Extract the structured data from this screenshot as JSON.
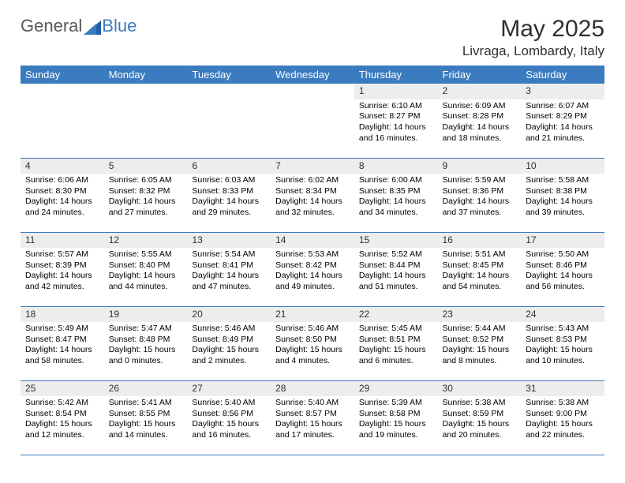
{
  "logo": {
    "text1": "General",
    "text2": "Blue"
  },
  "title": {
    "month": "May 2025",
    "location": "Livraga, Lombardy, Italy"
  },
  "style": {
    "header_bg": "#3b7bbf",
    "header_fg": "#ffffff",
    "daynum_bg": "#ededed",
    "border_color": "#3b7bbf",
    "text_color": "#000000",
    "font_family": "Arial",
    "th_fontsize": 13,
    "cell_fontsize": 10.5,
    "month_fontsize": 30,
    "location_fontsize": 17
  },
  "days_of_week": [
    "Sunday",
    "Monday",
    "Tuesday",
    "Wednesday",
    "Thursday",
    "Friday",
    "Saturday"
  ],
  "weeks": [
    [
      null,
      null,
      null,
      null,
      {
        "n": "1",
        "sunrise": "Sunrise: 6:10 AM",
        "sunset": "Sunset: 8:27 PM",
        "daylight": "Daylight: 14 hours and 16 minutes."
      },
      {
        "n": "2",
        "sunrise": "Sunrise: 6:09 AM",
        "sunset": "Sunset: 8:28 PM",
        "daylight": "Daylight: 14 hours and 18 minutes."
      },
      {
        "n": "3",
        "sunrise": "Sunrise: 6:07 AM",
        "sunset": "Sunset: 8:29 PM",
        "daylight": "Daylight: 14 hours and 21 minutes."
      }
    ],
    [
      {
        "n": "4",
        "sunrise": "Sunrise: 6:06 AM",
        "sunset": "Sunset: 8:30 PM",
        "daylight": "Daylight: 14 hours and 24 minutes."
      },
      {
        "n": "5",
        "sunrise": "Sunrise: 6:05 AM",
        "sunset": "Sunset: 8:32 PM",
        "daylight": "Daylight: 14 hours and 27 minutes."
      },
      {
        "n": "6",
        "sunrise": "Sunrise: 6:03 AM",
        "sunset": "Sunset: 8:33 PM",
        "daylight": "Daylight: 14 hours and 29 minutes."
      },
      {
        "n": "7",
        "sunrise": "Sunrise: 6:02 AM",
        "sunset": "Sunset: 8:34 PM",
        "daylight": "Daylight: 14 hours and 32 minutes."
      },
      {
        "n": "8",
        "sunrise": "Sunrise: 6:00 AM",
        "sunset": "Sunset: 8:35 PM",
        "daylight": "Daylight: 14 hours and 34 minutes."
      },
      {
        "n": "9",
        "sunrise": "Sunrise: 5:59 AM",
        "sunset": "Sunset: 8:36 PM",
        "daylight": "Daylight: 14 hours and 37 minutes."
      },
      {
        "n": "10",
        "sunrise": "Sunrise: 5:58 AM",
        "sunset": "Sunset: 8:38 PM",
        "daylight": "Daylight: 14 hours and 39 minutes."
      }
    ],
    [
      {
        "n": "11",
        "sunrise": "Sunrise: 5:57 AM",
        "sunset": "Sunset: 8:39 PM",
        "daylight": "Daylight: 14 hours and 42 minutes."
      },
      {
        "n": "12",
        "sunrise": "Sunrise: 5:55 AM",
        "sunset": "Sunset: 8:40 PM",
        "daylight": "Daylight: 14 hours and 44 minutes."
      },
      {
        "n": "13",
        "sunrise": "Sunrise: 5:54 AM",
        "sunset": "Sunset: 8:41 PM",
        "daylight": "Daylight: 14 hours and 47 minutes."
      },
      {
        "n": "14",
        "sunrise": "Sunrise: 5:53 AM",
        "sunset": "Sunset: 8:42 PM",
        "daylight": "Daylight: 14 hours and 49 minutes."
      },
      {
        "n": "15",
        "sunrise": "Sunrise: 5:52 AM",
        "sunset": "Sunset: 8:44 PM",
        "daylight": "Daylight: 14 hours and 51 minutes."
      },
      {
        "n": "16",
        "sunrise": "Sunrise: 5:51 AM",
        "sunset": "Sunset: 8:45 PM",
        "daylight": "Daylight: 14 hours and 54 minutes."
      },
      {
        "n": "17",
        "sunrise": "Sunrise: 5:50 AM",
        "sunset": "Sunset: 8:46 PM",
        "daylight": "Daylight: 14 hours and 56 minutes."
      }
    ],
    [
      {
        "n": "18",
        "sunrise": "Sunrise: 5:49 AM",
        "sunset": "Sunset: 8:47 PM",
        "daylight": "Daylight: 14 hours and 58 minutes."
      },
      {
        "n": "19",
        "sunrise": "Sunrise: 5:47 AM",
        "sunset": "Sunset: 8:48 PM",
        "daylight": "Daylight: 15 hours and 0 minutes."
      },
      {
        "n": "20",
        "sunrise": "Sunrise: 5:46 AM",
        "sunset": "Sunset: 8:49 PM",
        "daylight": "Daylight: 15 hours and 2 minutes."
      },
      {
        "n": "21",
        "sunrise": "Sunrise: 5:46 AM",
        "sunset": "Sunset: 8:50 PM",
        "daylight": "Daylight: 15 hours and 4 minutes."
      },
      {
        "n": "22",
        "sunrise": "Sunrise: 5:45 AM",
        "sunset": "Sunset: 8:51 PM",
        "daylight": "Daylight: 15 hours and 6 minutes."
      },
      {
        "n": "23",
        "sunrise": "Sunrise: 5:44 AM",
        "sunset": "Sunset: 8:52 PM",
        "daylight": "Daylight: 15 hours and 8 minutes."
      },
      {
        "n": "24",
        "sunrise": "Sunrise: 5:43 AM",
        "sunset": "Sunset: 8:53 PM",
        "daylight": "Daylight: 15 hours and 10 minutes."
      }
    ],
    [
      {
        "n": "25",
        "sunrise": "Sunrise: 5:42 AM",
        "sunset": "Sunset: 8:54 PM",
        "daylight": "Daylight: 15 hours and 12 minutes."
      },
      {
        "n": "26",
        "sunrise": "Sunrise: 5:41 AM",
        "sunset": "Sunset: 8:55 PM",
        "daylight": "Daylight: 15 hours and 14 minutes."
      },
      {
        "n": "27",
        "sunrise": "Sunrise: 5:40 AM",
        "sunset": "Sunset: 8:56 PM",
        "daylight": "Daylight: 15 hours and 16 minutes."
      },
      {
        "n": "28",
        "sunrise": "Sunrise: 5:40 AM",
        "sunset": "Sunset: 8:57 PM",
        "daylight": "Daylight: 15 hours and 17 minutes."
      },
      {
        "n": "29",
        "sunrise": "Sunrise: 5:39 AM",
        "sunset": "Sunset: 8:58 PM",
        "daylight": "Daylight: 15 hours and 19 minutes."
      },
      {
        "n": "30",
        "sunrise": "Sunrise: 5:38 AM",
        "sunset": "Sunset: 8:59 PM",
        "daylight": "Daylight: 15 hours and 20 minutes."
      },
      {
        "n": "31",
        "sunrise": "Sunrise: 5:38 AM",
        "sunset": "Sunset: 9:00 PM",
        "daylight": "Daylight: 15 hours and 22 minutes."
      }
    ]
  ]
}
